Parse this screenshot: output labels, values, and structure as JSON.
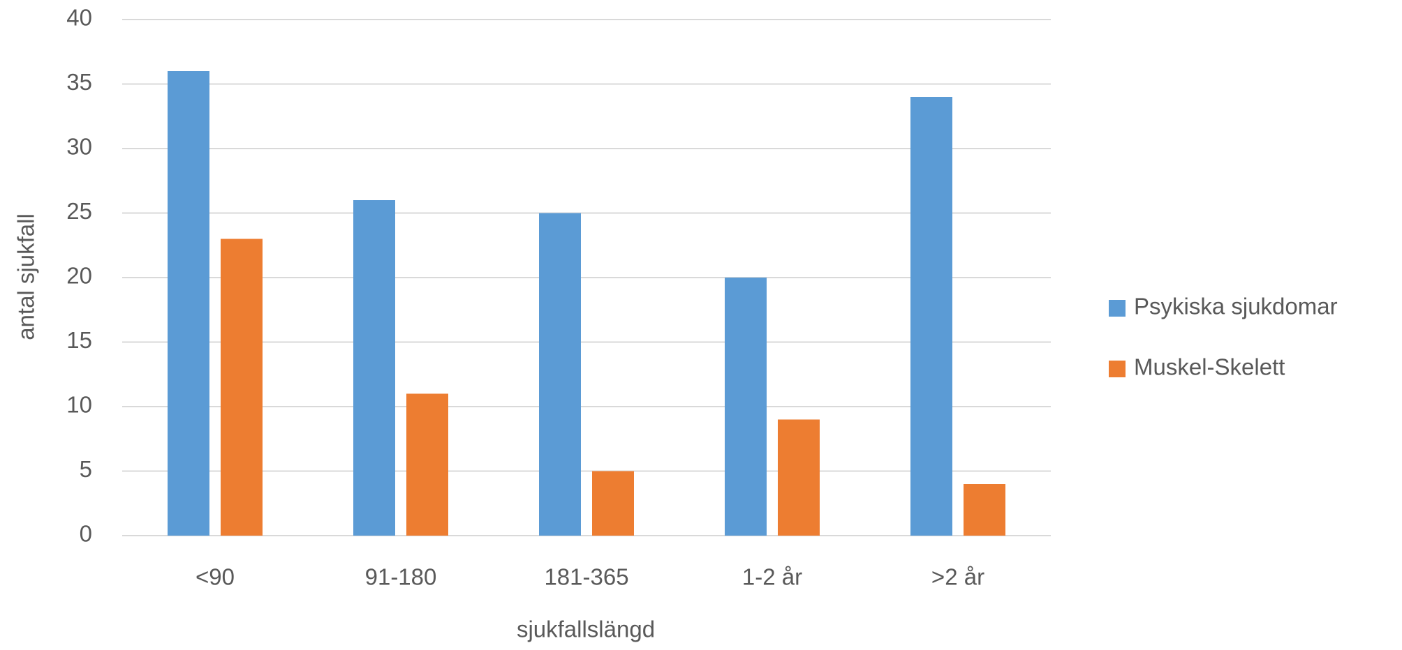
{
  "chart_data": {
    "type": "bar",
    "x_label": "sjukfallslängd",
    "y_label": "antal sjukfall",
    "categories": [
      "<90",
      "91-180",
      "181-365",
      "1-2 år",
      ">2 år"
    ],
    "series": [
      {
        "name": "Psykiska sjukdomar",
        "color": "#5b9bd5",
        "values": [
          36,
          26,
          25,
          20,
          34
        ]
      },
      {
        "name": "Muskel-Skelett",
        "color": "#ed7d31",
        "values": [
          23,
          11,
          5,
          9,
          4
        ]
      }
    ],
    "ylim": [
      0,
      40
    ],
    "yticks": [
      0,
      5,
      10,
      15,
      20,
      25,
      30,
      35,
      40
    ],
    "grid": true,
    "legend": "right"
  }
}
